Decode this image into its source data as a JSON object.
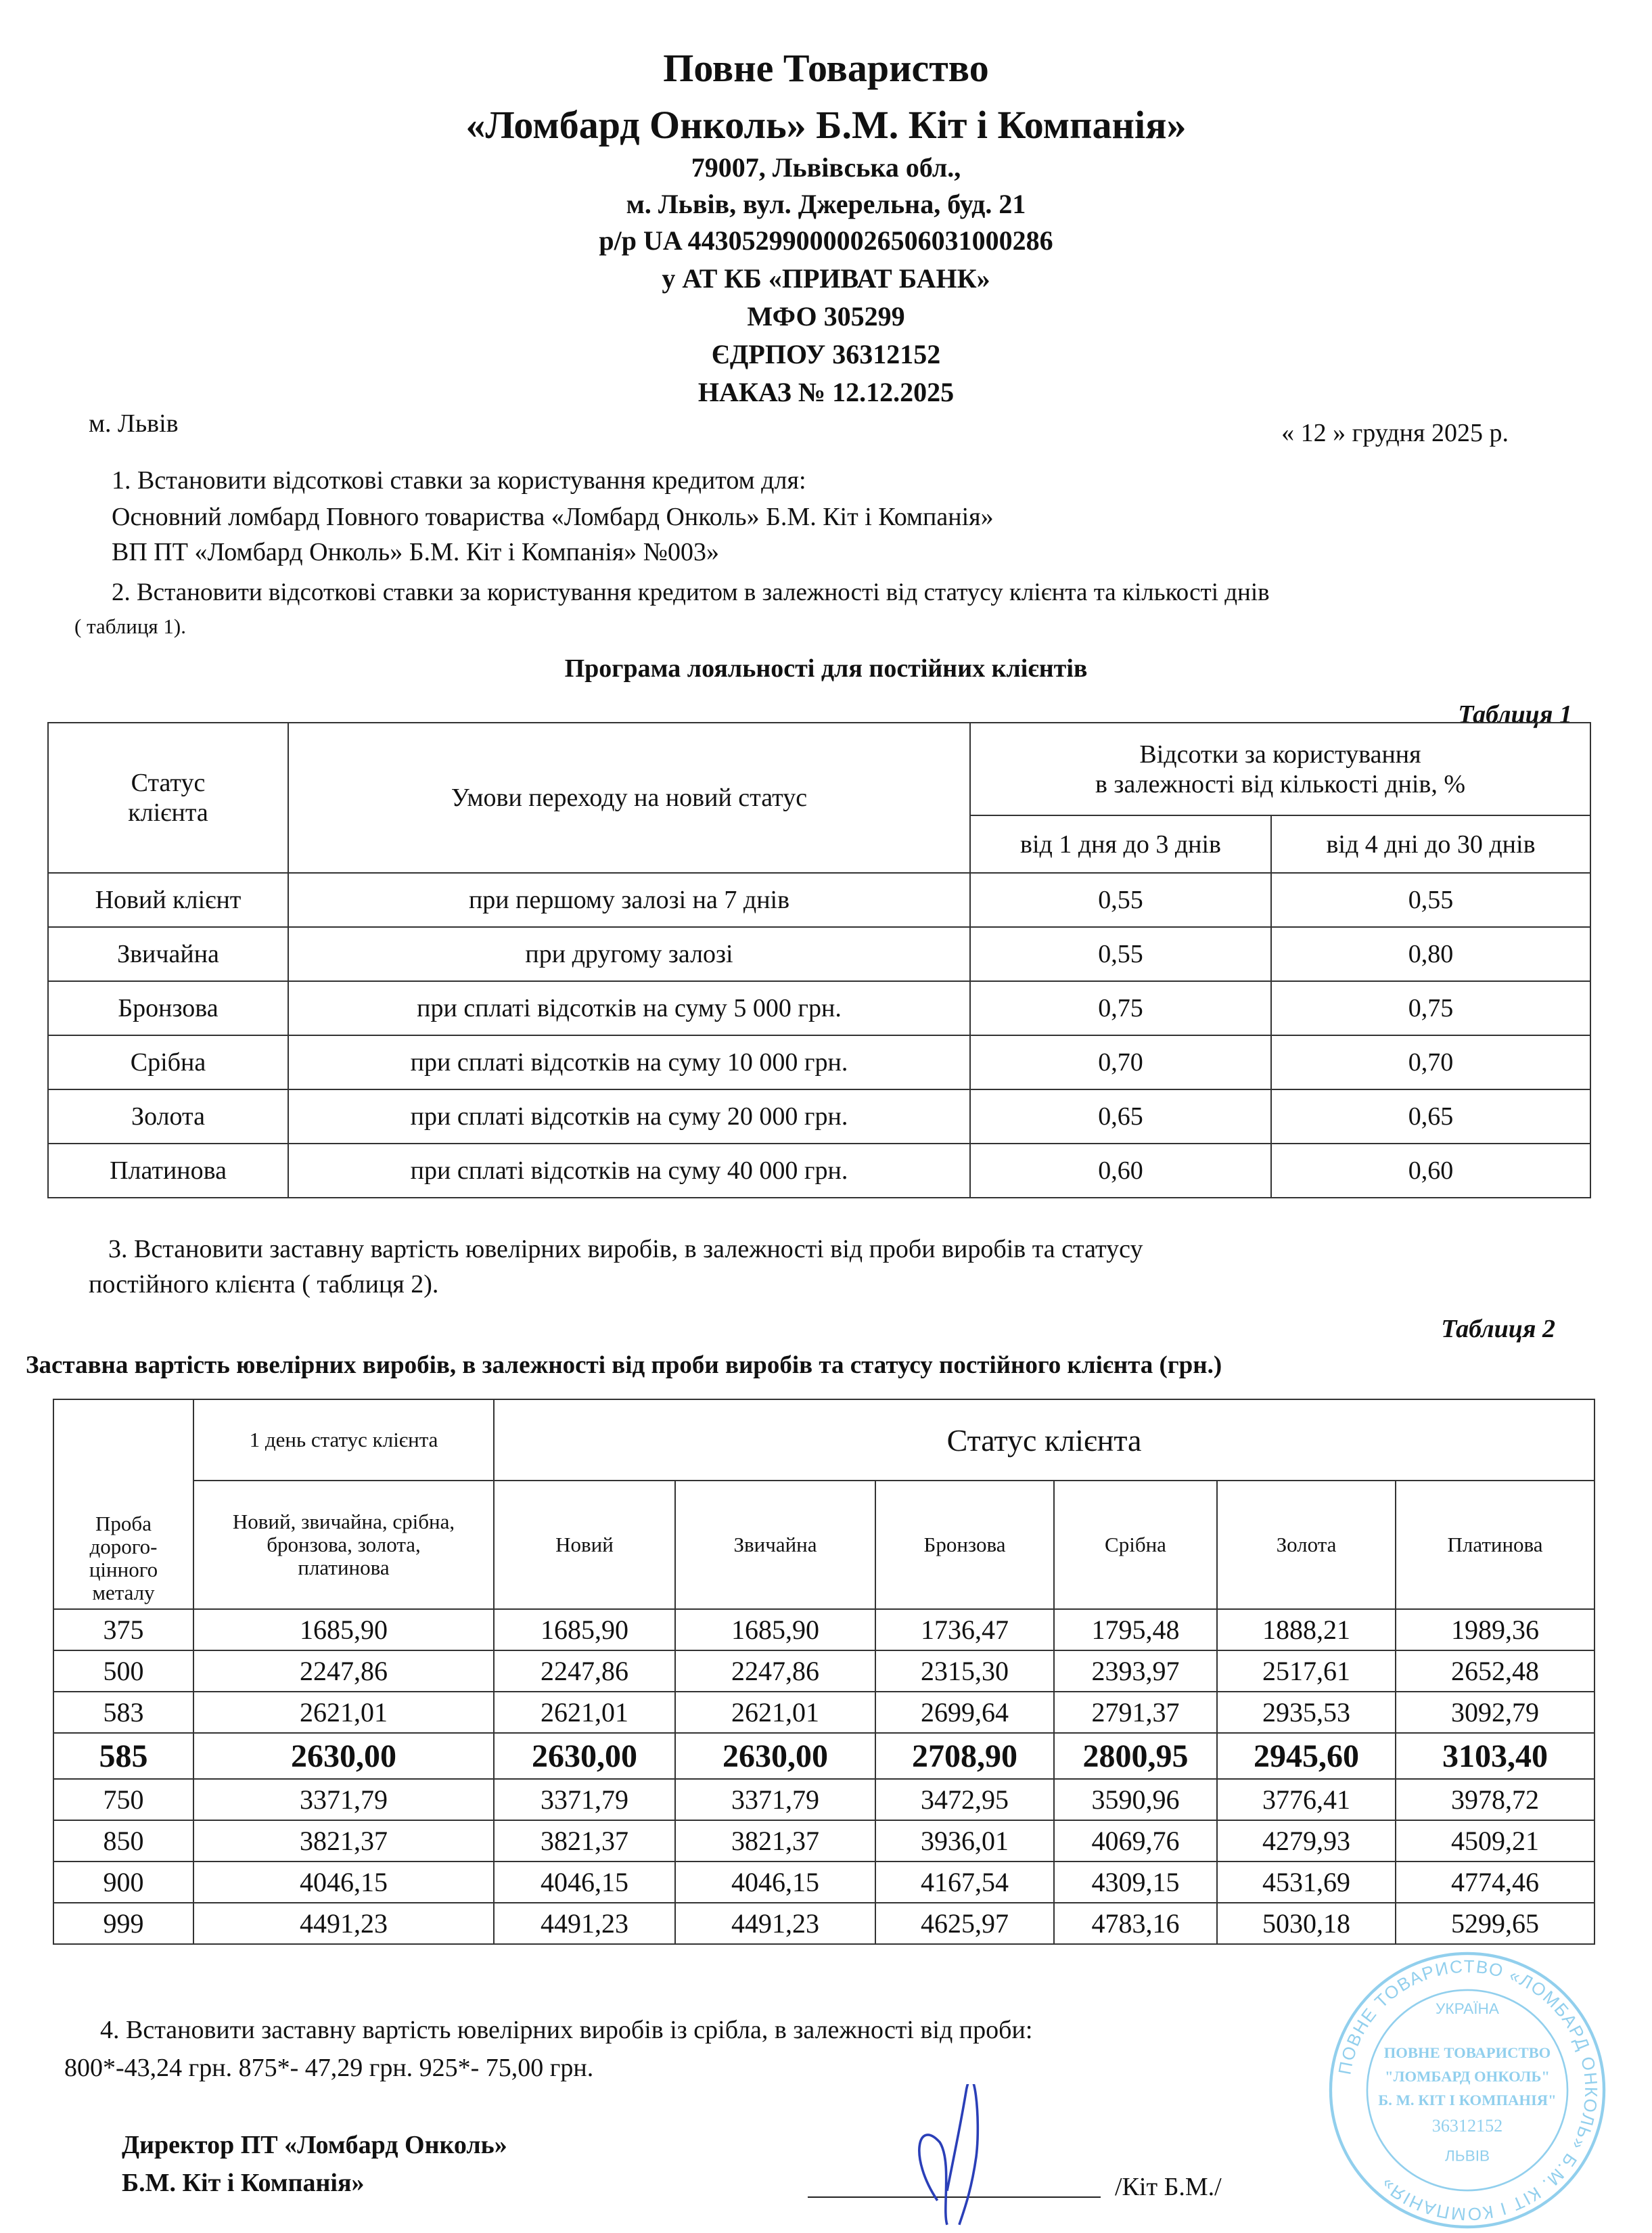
{
  "header": {
    "title_line1": "Повне Товариство",
    "title_line2": "«Ломбард Онколь» Б.М. Кіт і Компанія»",
    "address1": "79007, Львівська обл.,",
    "address2": "м. Львів, вул. Джерельна, буд.  21",
    "account": "р/р UA 443052990000026506031000286",
    "bank": "у  АТ КБ «ПРИВАТ БАНК»",
    "mfo": "МФО 305299",
    "edrpou": "ЄДРПОУ 36312152",
    "order": "НАКАЗ № 12.12.2025"
  },
  "city": "м. Львів",
  "date": "« 12 » грудня  2025 р.",
  "para1": {
    "line1": "1.  Встановити відсоткові ставки за користування кредитом для:",
    "line2": "Основний ломбард Повного товариства «Ломбард Онколь» Б.М. Кіт і Компанія»",
    "line3": "ВП ПТ  «Ломбард Онколь» Б.М. Кіт і Компанія» №003»",
    "line4": "2.  Встановити  відсоткові ставки за користування кредитом в залежності від статусу клієнта та кількості днів",
    "line5": "( таблиця 1)."
  },
  "table1": {
    "heading": "Програма лояльності для постійних клієнтів",
    "label": "Таблиця 1",
    "col_status": "Статус клієнта",
    "col_conditions": "Умови  переходу на новий статус",
    "col_percent_line1": "Відсотки за користування",
    "col_percent_line2": "в залежності від кількості днів, %",
    "col_days1": "від 1 дня до 3 днів",
    "col_days2": "від 4 дні до 30 днів",
    "rows": [
      {
        "status": "Новий клієнт",
        "condition": "при першому залозі  на 7 днів",
        "p1": "0,55",
        "p2": "0,55"
      },
      {
        "status": "Звичайна",
        "condition": "при другому залозі",
        "p1": "0,55",
        "p2": "0,80"
      },
      {
        "status": "Бронзова",
        "condition": "при сплаті відсотків на суму 5 000 грн.",
        "p1": "0,75",
        "p2": "0,75"
      },
      {
        "status": "Срібна",
        "condition": "при сплаті відсотків на  суму 10 000 грн.",
        "p1": "0,70",
        "p2": "0,70"
      },
      {
        "status": "Золота",
        "condition": "при сплаті відсотків на суму  20 000 грн.",
        "p1": "0,65",
        "p2": "0,65"
      },
      {
        "status": "Платинова",
        "condition": "при сплаті відсотків на  суму 40 000 грн.",
        "p1": "0,60",
        "p2": "0,60"
      }
    ]
  },
  "para3": {
    "line1": "3.  Встановити  заставну  вартість  ювелірних  виробів,  в  залежності  від  проби  виробів  та  статусу",
    "line2": "постійного клієнта ( таблиця 2)."
  },
  "table2": {
    "label": "Таблиця 2",
    "caption": "Заставна вартість ювелірних виробів, в залежності від проби виробів та статусу постійного клієнта (грн.)",
    "col_probe": "Проба дорого-цінного металу",
    "col_day1_top": "1 день статус клієнта",
    "col_day1_sub": "Новий, звичайна, срібна, бронзова, золота, платинова",
    "col_status": "Статус  клієнта",
    "statuses": [
      "Новий",
      "Звичайна",
      "Бронзова",
      "Срібна",
      "Золота",
      "Платинова"
    ],
    "highlight_probe": "585",
    "rows": [
      {
        "probe": "375",
        "values": [
          "1685,90",
          "1685,90",
          "1685,90",
          "1736,47",
          "1795,48",
          "1888,21",
          "1989,36"
        ]
      },
      {
        "probe": "500",
        "values": [
          "2247,86",
          "2247,86",
          "2247,86",
          "2315,30",
          "2393,97",
          "2517,61",
          "2652,48"
        ]
      },
      {
        "probe": "583",
        "values": [
          "2621,01",
          "2621,01",
          "2621,01",
          "2699,64",
          "2791,37",
          "2935,53",
          "3092,79"
        ]
      },
      {
        "probe": "585",
        "values": [
          "2630,00",
          "2630,00",
          "2630,00",
          "2708,90",
          "2800,95",
          "2945,60",
          "3103,40"
        ]
      },
      {
        "probe": "750",
        "values": [
          "3371,79",
          "3371,79",
          "3371,79",
          "3472,95",
          "3590,96",
          "3776,41",
          "3978,72"
        ]
      },
      {
        "probe": "850",
        "values": [
          "3821,37",
          "3821,37",
          "3821,37",
          "3936,01",
          "4069,76",
          "4279,93",
          "4509,21"
        ]
      },
      {
        "probe": "900",
        "values": [
          "4046,15",
          "4046,15",
          "4046,15",
          "4167,54",
          "4309,15",
          "4531,69",
          "4774,46"
        ]
      },
      {
        "probe": "999",
        "values": [
          "4491,23",
          "4491,23",
          "4491,23",
          "4625,97",
          "4783,16",
          "5030,18",
          "5299,65"
        ]
      }
    ]
  },
  "para4": {
    "line1": "4.  Встановити заставну вартість ювелірних виробів із срібла,  в залежності від проби:",
    "line2": "800*-43,24 грн.  875*- 47,29 грн.   925*- 75,00 грн."
  },
  "signature": {
    "director_line1": "Директор ПТ  «Ломбард Онколь»",
    "director_line2": "Б.М. Кіт і Компанія»",
    "name": "/Кіт Б.М./"
  },
  "stamp": {
    "outer_text": "ПОВНЕ ТОВАРИСТВО «ЛОМБАРД ОНКОЛЬ» Б.М. КІТ І КОМПАНІЯ»",
    "country": "УКРАЇНА",
    "inner_line1": "ПОВНЕ ТОВАРИСТВО",
    "inner_line2": "\"ЛОМБАРД ОНКОЛЬ\"",
    "inner_line3": "Б. М. КІТ І КОМПАНІЯ\"",
    "code": "36312152",
    "city": "ЛЬВІВ",
    "color": "#39a9e0",
    "signature_color": "#2a3fb8"
  }
}
